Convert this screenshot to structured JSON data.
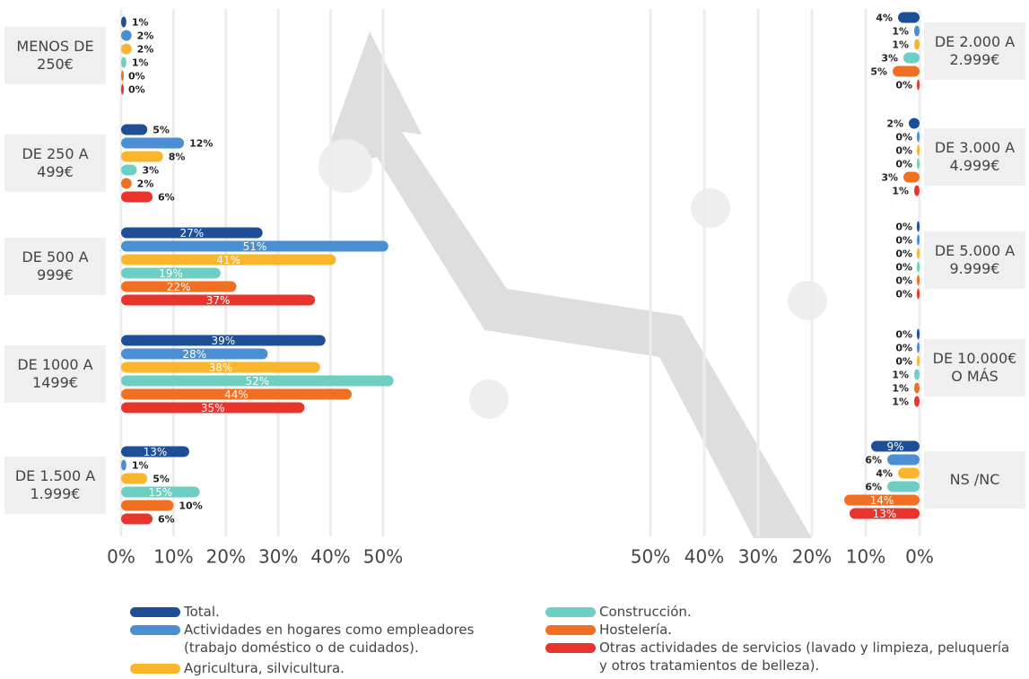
{
  "chart_data": [
    {
      "type": "bar",
      "categories": [
        "MENOS DE 250€",
        "DE 250 A 499€",
        "DE 500 A 999€",
        "DE 1000 A 1499€",
        "DE 1.500 A 1.999€"
      ],
      "xlim": [
        0,
        50
      ],
      "xticks": [
        {
          "value": 0,
          "label": "0%"
        },
        {
          "value": 10,
          "label": "10%"
        },
        {
          "value": 20,
          "label": "20%"
        },
        {
          "value": 30,
          "label": "30%"
        },
        {
          "value": 40,
          "label": "40%"
        },
        {
          "value": 50,
          "label": "50%"
        }
      ],
      "grid": true,
      "series": [
        {
          "name": "Total.",
          "color": "#1d4e96",
          "values": [
            1,
            5,
            27,
            39,
            13
          ],
          "value_labels": [
            "1%",
            "5%",
            "27%",
            "39%",
            "13%"
          ]
        },
        {
          "name": "Actividades en hogares como empleadores (trabajo doméstico o de cuidados).",
          "color": "#4a8fd4",
          "values": [
            2,
            12,
            51,
            28,
            1
          ],
          "value_labels": [
            "2%",
            "12%",
            "51%",
            "28%",
            "1%"
          ]
        },
        {
          "name": "Agricultura, silvicultura.",
          "color": "#f9b52b",
          "values": [
            2,
            8,
            41,
            38,
            5
          ],
          "value_labels": [
            "2%",
            "8%",
            "41%",
            "38%",
            "5%"
          ]
        },
        {
          "name": "Construcción.",
          "color": "#6dcfc3",
          "values": [
            1,
            3,
            19,
            52,
            15
          ],
          "value_labels": [
            "1%",
            "3%",
            "19%",
            "52%",
            "15%"
          ]
        },
        {
          "name": "Hostelería.",
          "color": "#f07023",
          "values": [
            0,
            2,
            22,
            44,
            10
          ],
          "value_labels": [
            "0%",
            "2%",
            "22%",
            "44%",
            "10%"
          ]
        },
        {
          "name": "Otras actividades de servicios (lavado y limpieza, peluquería y otros tratamientos de belleza).",
          "color": "#e8342c",
          "values": [
            0,
            6,
            37,
            35,
            6
          ],
          "value_labels": [
            "0%",
            "6%",
            "37%",
            "35%",
            "6%"
          ]
        }
      ]
    },
    {
      "type": "bar",
      "categories": [
        "DE 2.000 A 2.999€",
        "DE 3.000 A 4.999€",
        "DE 5.000 A 9.999€",
        "DE 10.000€ O MÁS",
        "NS /NC"
      ],
      "xlim": [
        0,
        50
      ],
      "xticks": [
        {
          "value": 0,
          "label": "0%"
        },
        {
          "value": 10,
          "label": "10%"
        },
        {
          "value": 20,
          "label": "20%"
        },
        {
          "value": 30,
          "label": "30%"
        },
        {
          "value": 40,
          "label": "40%"
        },
        {
          "value": 50,
          "label": "50%"
        }
      ],
      "grid": true,
      "series": [
        {
          "color": "#1d4e96",
          "values": [
            4,
            2,
            0,
            0,
            9
          ],
          "value_labels": [
            "4%",
            "2%",
            "0%",
            "0%",
            "9%"
          ]
        },
        {
          "color": "#4a8fd4",
          "values": [
            1,
            0,
            0,
            0,
            6
          ],
          "value_labels": [
            "1%",
            "0%",
            "0%",
            "0%",
            "6%"
          ]
        },
        {
          "color": "#f9b52b",
          "values": [
            1,
            0,
            0,
            0,
            4
          ],
          "value_labels": [
            "1%",
            "0%",
            "0%",
            "0%",
            "4%"
          ]
        },
        {
          "color": "#6dcfc3",
          "values": [
            3,
            0,
            0,
            1,
            6
          ],
          "value_labels": [
            "3%",
            "0%",
            "0%",
            "1%",
            "6%"
          ]
        },
        {
          "color": "#f07023",
          "values": [
            5,
            3,
            0,
            1,
            14
          ],
          "value_labels": [
            "5%",
            "3%",
            "0%",
            "1%",
            "14%"
          ]
        },
        {
          "color": "#e8342c",
          "values": [
            0,
            1,
            0,
            1,
            13
          ],
          "value_labels": [
            "0%",
            "1%",
            "0%",
            "1%",
            "13%"
          ]
        }
      ]
    }
  ]
}
